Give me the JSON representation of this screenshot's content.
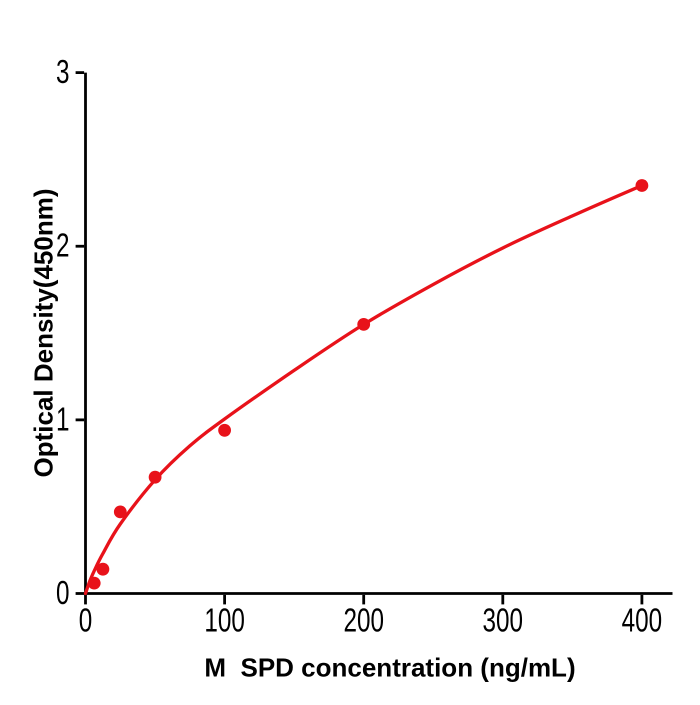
{
  "chart_data": {
    "type": "scatter",
    "title": "",
    "xlabel": "M  SPD concentration (ng/mL)",
    "ylabel": "Optical Density(450nm)",
    "series": [
      {
        "name": "standard-points",
        "x": [
          6.25,
          12.5,
          25,
          50,
          100,
          200,
          400
        ],
        "y": [
          0.06,
          0.14,
          0.47,
          0.67,
          0.94,
          1.55,
          2.35
        ],
        "marker": "filled-circle",
        "color": "#e8121a"
      }
    ],
    "fit_curve": {
      "name": "fitted-standard-curve",
      "x": [
        0,
        3,
        6.25,
        12.5,
        25,
        50,
        75,
        100,
        150,
        200,
        250,
        300,
        350,
        400
      ],
      "y": [
        0,
        0.07,
        0.13,
        0.23,
        0.4,
        0.655,
        0.85,
        1.005,
        1.285,
        1.55,
        1.78,
        1.99,
        2.175,
        2.35
      ],
      "color": "#e8121a"
    },
    "x_ticks": [
      0,
      100,
      200,
      300,
      400
    ],
    "y_ticks": [
      0,
      1,
      2,
      3
    ],
    "xlim": [
      0,
      422
    ],
    "ylim": [
      0,
      3
    ],
    "grid": false,
    "legend_position": "none",
    "axis_color": "#000000",
    "background": "#ffffff"
  }
}
